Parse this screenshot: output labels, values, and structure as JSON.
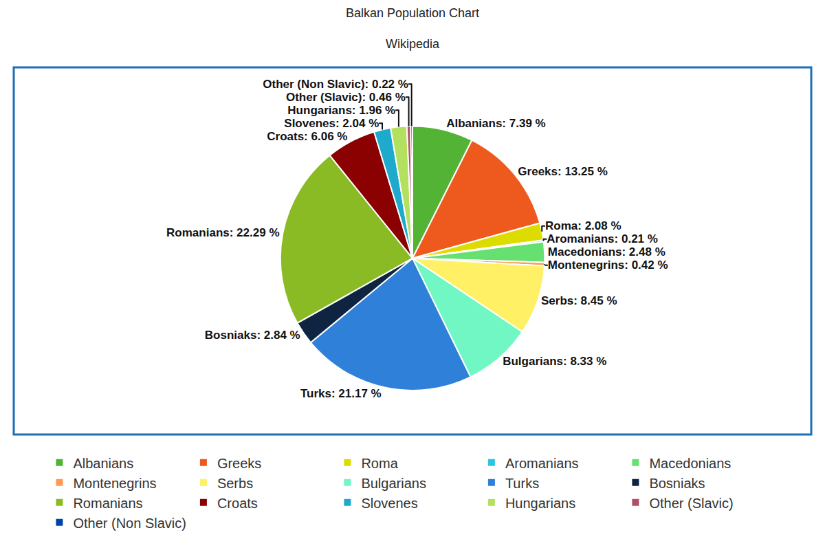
{
  "chart_data": {
    "type": "pie",
    "title": "Balkan Population Chart",
    "subtitle": "Wikipedia",
    "categories": [
      "Albanians",
      "Greeks",
      "Roma",
      "Aromanians",
      "Macedonians",
      "Montenegrins",
      "Serbs",
      "Bulgarians",
      "Turks",
      "Bosniaks",
      "Romanians",
      "Croats",
      "Slovenes",
      "Hungarians",
      "Other (Slavic)",
      "Other (Non Slavic)"
    ],
    "values": [
      7.39,
      13.25,
      2.08,
      0.21,
      2.48,
      0.42,
      8.45,
      8.33,
      21.17,
      2.84,
      22.29,
      6.06,
      2.04,
      1.96,
      0.46,
      0.22
    ],
    "value_labels": [
      "Albanians: 7.39 %",
      "Greeks: 13.25 %",
      "Roma: 2.08 %",
      "Aromanians: 0.21 %",
      "Macedonians: 2.48 %",
      "Montenegrins: 0.42 %",
      "Serbs: 8.45 %",
      "Bulgarians: 8.33 %",
      "Turks: 21.17 %",
      "Bosniaks: 2.84 %",
      "Romanians: 22.29 %",
      "Croats: 6.06 %",
      "Slovenes: 2.04 %",
      "Hungarians: 1.96 %",
      "Other (Slavic): 0.46 %",
      "Other (Non Slavic): 0.22 %"
    ],
    "colors": [
      "#52b334",
      "#ee5a1e",
      "#dcdc00",
      "#29c8e0",
      "#66e070",
      "#ff9955",
      "#fff066",
      "#70f7c4",
      "#2f80d8",
      "#0e2440",
      "#8bbb24",
      "#8b0000",
      "#1eaacc",
      "#b3e05e",
      "#b05068",
      "#0044aa"
    ],
    "data_labels": true,
    "legend": "bottom"
  }
}
